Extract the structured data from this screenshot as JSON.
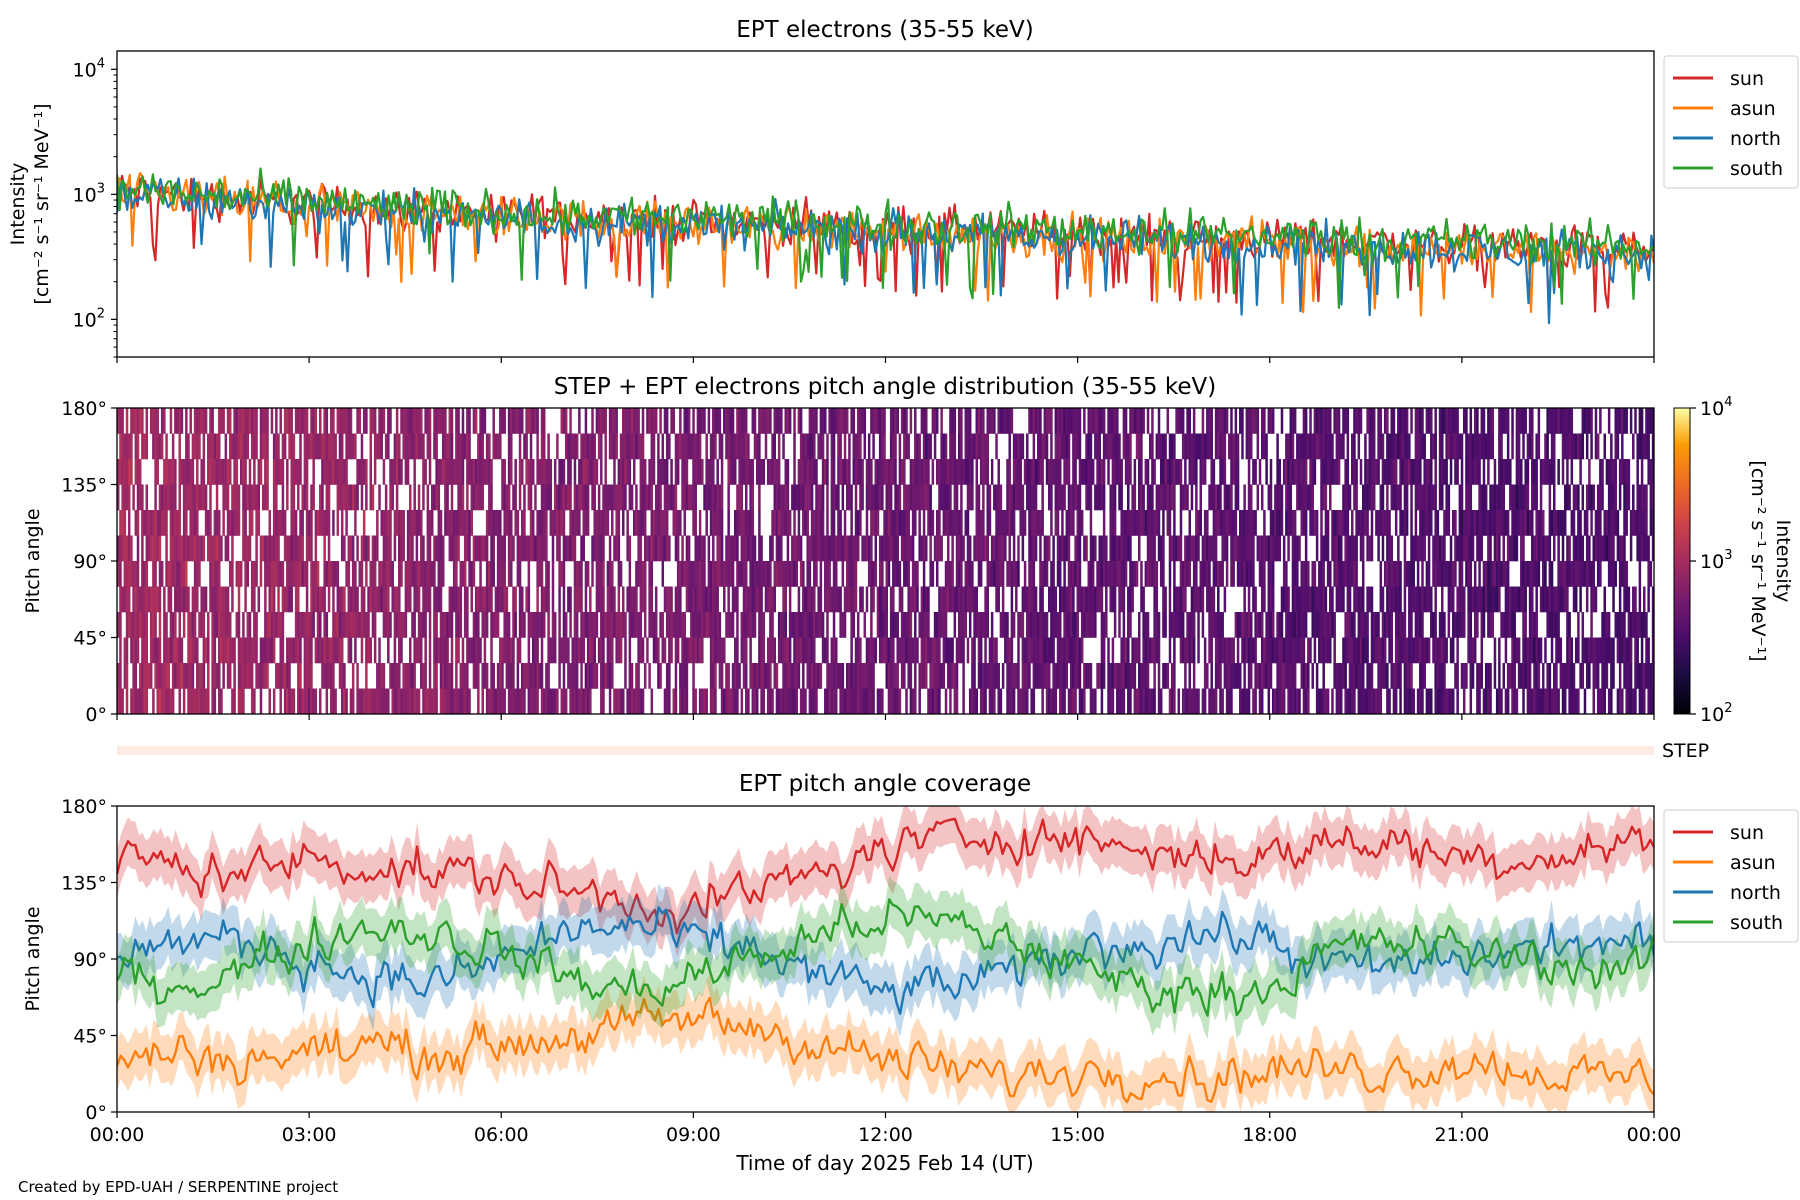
{
  "credit": "Created by EPD-UAH / SERPENTINE project",
  "xaxis": {
    "label": "Time of day 2025 Feb 14 (UT)",
    "ticks": [
      "00:00",
      "03:00",
      "06:00",
      "09:00",
      "12:00",
      "15:00",
      "18:00",
      "21:00",
      "00:00"
    ]
  },
  "colors": {
    "sun": "#d62728",
    "asun": "#ff7f0e",
    "north": "#1f77b4",
    "south": "#2ca02c"
  },
  "chart_data": [
    {
      "type": "line",
      "title": "EPT electrons (35-55 keV)",
      "ylabel_line1": "Intensity",
      "ylabel_line2": "[cm⁻² s⁻¹ sr⁻¹ MeV⁻¹]",
      "yscale": "log",
      "ylim": [
        50,
        14000
      ],
      "yticks": [
        {
          "value": 100,
          "base": "10",
          "exp": "2"
        },
        {
          "value": 1000,
          "base": "10",
          "exp": "3"
        },
        {
          "value": 10000,
          "base": "10",
          "exp": "4"
        }
      ],
      "xlim_hours": [
        0,
        24
      ],
      "legend": {
        "placement": "outside-right",
        "entries": [
          "sun",
          "asun",
          "north",
          "south"
        ]
      },
      "series": [
        {
          "name": "sun",
          "color": "#d62728",
          "x_hours": [
            0,
            1,
            2,
            3,
            4,
            5,
            6,
            7,
            8,
            9,
            10,
            11,
            12,
            13,
            14,
            15,
            16,
            17,
            18,
            19,
            20,
            21,
            22,
            23,
            24
          ],
          "values": [
            1050,
            980,
            900,
            840,
            780,
            730,
            700,
            670,
            640,
            610,
            590,
            570,
            550,
            530,
            510,
            490,
            470,
            455,
            440,
            425,
            410,
            395,
            380,
            370,
            360
          ]
        },
        {
          "name": "asun",
          "color": "#ff7f0e",
          "x_hours": [
            0,
            1,
            2,
            3,
            4,
            5,
            6,
            7,
            8,
            9,
            10,
            11,
            12,
            13,
            14,
            15,
            16,
            17,
            18,
            19,
            20,
            21,
            22,
            23,
            24
          ],
          "values": [
            1000,
            940,
            870,
            810,
            750,
            700,
            660,
            630,
            600,
            575,
            555,
            535,
            515,
            495,
            475,
            455,
            440,
            425,
            410,
            395,
            380,
            365,
            355,
            345,
            335
          ]
        },
        {
          "name": "north",
          "color": "#1f77b4",
          "x_hours": [
            0,
            1,
            2,
            3,
            4,
            5,
            6,
            7,
            8,
            9,
            10,
            11,
            12,
            13,
            14,
            15,
            16,
            17,
            18,
            19,
            20,
            21,
            22,
            23,
            24
          ],
          "values": [
            1000,
            930,
            860,
            800,
            740,
            690,
            650,
            620,
            590,
            565,
            545,
            525,
            505,
            485,
            465,
            450,
            435,
            420,
            405,
            390,
            375,
            360,
            350,
            340,
            330
          ]
        },
        {
          "name": "south",
          "color": "#2ca02c",
          "x_hours": [
            0,
            1,
            2,
            3,
            4,
            5,
            6,
            7,
            8,
            9,
            10,
            11,
            12,
            13,
            14,
            15,
            16,
            17,
            18,
            19,
            20,
            21,
            22,
            23,
            24
          ],
          "values": [
            1100,
            1020,
            950,
            880,
            820,
            770,
            730,
            700,
            670,
            640,
            620,
            600,
            580,
            560,
            540,
            520,
            500,
            485,
            470,
            455,
            440,
            425,
            410,
            400,
            390
          ]
        }
      ]
    },
    {
      "type": "heatmap",
      "title": "STEP + EPT electrons pitch angle distribution (35-55 keV)",
      "ylabel": "Pitch angle",
      "ylim": [
        0,
        180
      ],
      "yticks": [
        "0°",
        "45°",
        "90°",
        "135°",
        "180°"
      ],
      "xlim_hours": [
        0,
        24
      ],
      "colorbar": {
        "scale": "log",
        "range": [
          100,
          10000
        ],
        "colormap": "inferno",
        "label_line1": "Intensity",
        "label_line2": "[cm⁻² s⁻¹ sr⁻¹ MeV⁻¹]",
        "ticks": [
          {
            "value": 100,
            "base": "10",
            "exp": "2"
          },
          {
            "value": 1000,
            "base": "10",
            "exp": "3"
          },
          {
            "value": 10000,
            "base": "10",
            "exp": "4"
          }
        ]
      },
      "intensity_trend": {
        "x_hours": [
          0,
          3,
          6,
          9,
          12,
          15,
          18,
          21,
          24
        ],
        "values": [
          950,
          820,
          650,
          560,
          480,
          420,
          380,
          350,
          320
        ]
      },
      "step_strip": {
        "label": "STEP"
      }
    },
    {
      "type": "line",
      "title": "EPT pitch angle coverage",
      "ylabel": "Pitch angle",
      "ylim": [
        0,
        180
      ],
      "yticks": [
        "0°",
        "45°",
        "90°",
        "135°",
        "180°"
      ],
      "xlim_hours": [
        0,
        24
      ],
      "legend": {
        "placement": "outside-right",
        "entries": [
          "sun",
          "asun",
          "north",
          "south"
        ]
      },
      "series": [
        {
          "name": "sun",
          "color": "#d62728",
          "x_hours": [
            0,
            1,
            2,
            3,
            4,
            5,
            6,
            7,
            8,
            9,
            10,
            11,
            12,
            13,
            14,
            15,
            16,
            17,
            18,
            19,
            20,
            21,
            22,
            23,
            24
          ],
          "values": [
            150,
            145,
            140,
            150,
            145,
            140,
            138,
            130,
            125,
            120,
            130,
            140,
            155,
            160,
            165,
            160,
            155,
            150,
            150,
            160,
            158,
            150,
            150,
            155,
            160
          ]
        },
        {
          "name": "asun",
          "color": "#ff7f0e",
          "x_hours": [
            0,
            1,
            2,
            3,
            4,
            5,
            6,
            7,
            8,
            9,
            10,
            11,
            12,
            13,
            14,
            15,
            16,
            17,
            18,
            19,
            20,
            21,
            22,
            23,
            24
          ],
          "values": [
            30,
            35,
            30,
            35,
            40,
            35,
            40,
            45,
            50,
            55,
            50,
            40,
            30,
            25,
            20,
            25,
            25,
            20,
            25,
            25,
            25,
            30,
            25,
            20,
            20
          ]
        },
        {
          "name": "north",
          "color": "#1f77b4",
          "x_hours": [
            0,
            1,
            2,
            3,
            4,
            5,
            6,
            7,
            8,
            9,
            10,
            11,
            12,
            13,
            14,
            15,
            16,
            17,
            18,
            19,
            20,
            21,
            22,
            23,
            24
          ],
          "values": [
            95,
            100,
            100,
            90,
            80,
            75,
            90,
            105,
            110,
            100,
            95,
            80,
            70,
            75,
            80,
            95,
            100,
            105,
            100,
            85,
            85,
            90,
            95,
            100,
            95
          ]
        },
        {
          "name": "south",
          "color": "#2ca02c",
          "x_hours": [
            0,
            1,
            2,
            3,
            4,
            5,
            6,
            7,
            8,
            9,
            10,
            11,
            12,
            13,
            14,
            15,
            16,
            17,
            18,
            19,
            20,
            21,
            22,
            23,
            24
          ],
          "values": [
            80,
            75,
            85,
            100,
            110,
            105,
            95,
            80,
            70,
            80,
            90,
            105,
            115,
            110,
            100,
            85,
            75,
            70,
            75,
            95,
            100,
            95,
            90,
            85,
            85
          ]
        }
      ]
    }
  ]
}
